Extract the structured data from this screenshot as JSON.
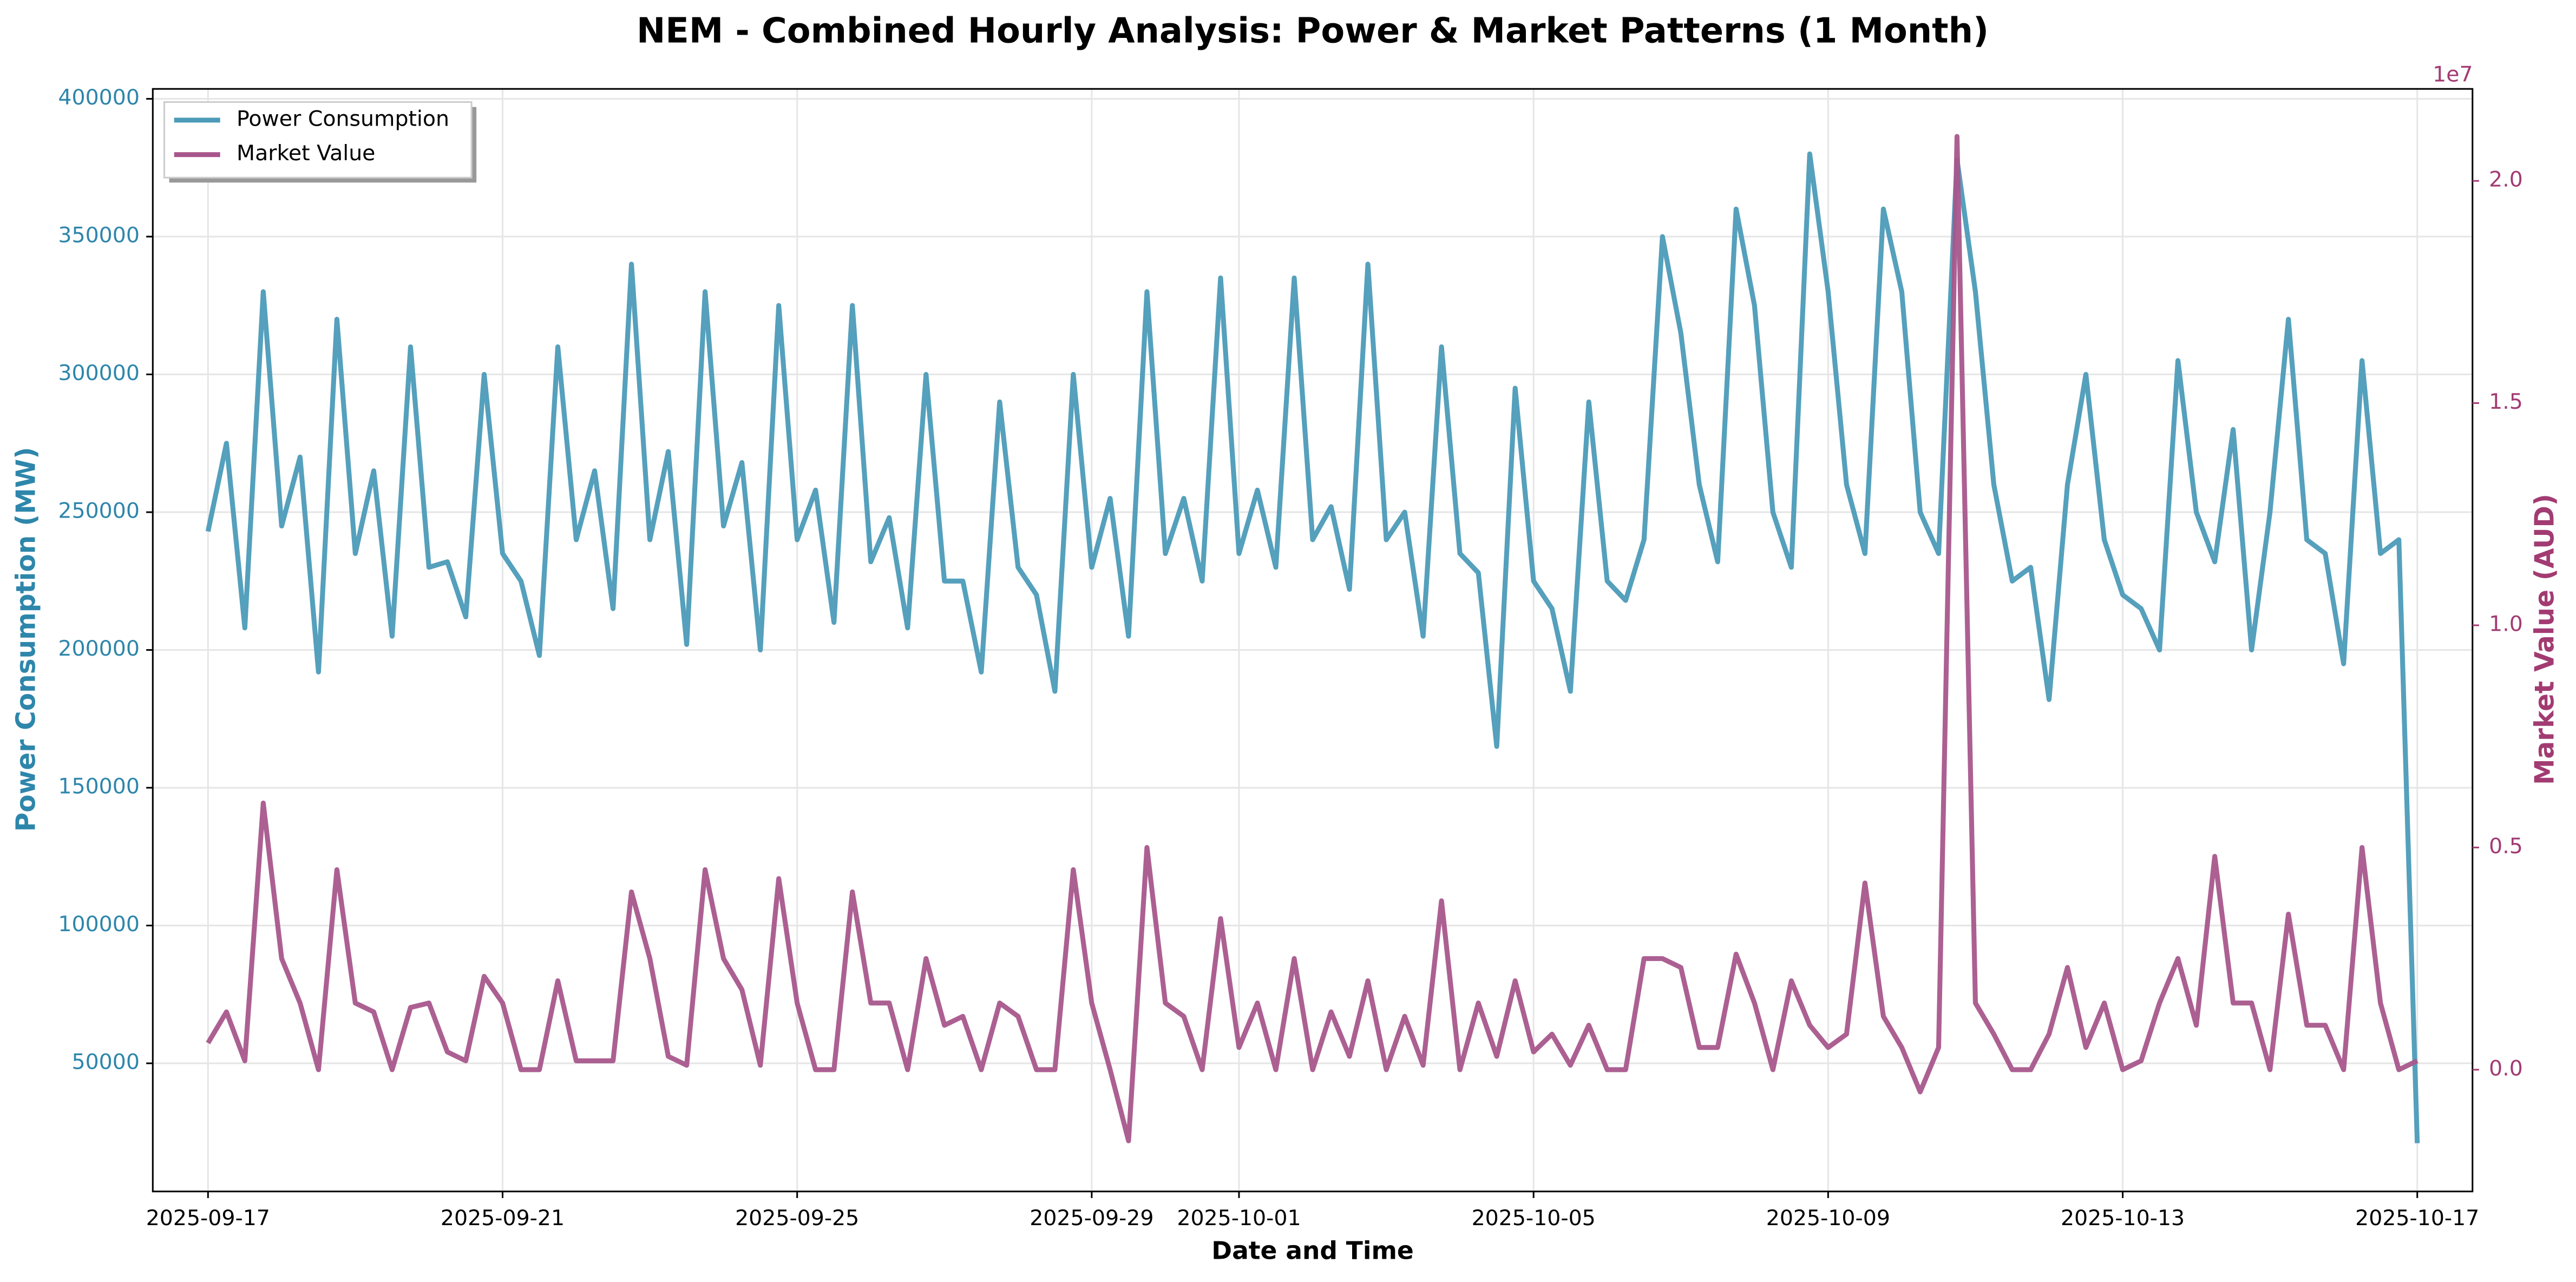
{
  "chart_data": {
    "type": "line",
    "title": "NEM - Combined Hourly Analysis: Power & Market Patterns (1 Month)",
    "xlabel": "Date and Time",
    "ylabel": "Power Consumption (MW)",
    "y2label": "Market Value (AUD)",
    "y2_offset_label": "1e7",
    "grid": true,
    "legend": "upper left",
    "x": [
      0,
      0.25,
      0.5,
      0.75,
      1,
      1.25,
      1.5,
      1.75,
      2,
      2.25,
      2.5,
      2.75,
      3,
      3.25,
      3.5,
      3.75,
      4,
      4.25,
      4.5,
      4.75,
      5,
      5.25,
      5.5,
      5.75,
      6,
      6.25,
      6.5,
      6.75,
      7,
      7.25,
      7.5,
      7.75,
      8,
      8.25,
      8.5,
      8.75,
      9,
      9.25,
      9.5,
      9.75,
      10,
      10.25,
      10.5,
      10.75,
      11,
      11.25,
      11.5,
      11.75,
      12,
      12.25,
      12.5,
      12.75,
      13,
      13.25,
      13.5,
      13.75,
      14,
      14.25,
      14.5,
      14.75,
      15,
      15.25,
      15.5,
      15.75,
      16,
      16.25,
      16.5,
      16.75,
      17,
      17.25,
      17.5,
      17.75,
      18,
      18.25,
      18.5,
      18.75,
      19,
      19.25,
      19.5,
      19.75,
      20,
      20.25,
      20.5,
      20.75,
      21,
      21.25,
      21.5,
      21.75,
      22,
      22.25,
      22.5,
      22.75,
      23,
      23.25,
      23.5,
      23.75,
      24,
      24.25,
      24.5,
      24.75,
      25,
      25.25,
      25.5,
      25.75,
      26,
      26.25,
      26.5,
      26.75,
      27,
      27.25,
      27.5,
      27.75,
      28,
      28.25,
      28.5,
      28.75,
      29,
      29.25,
      29.5,
      29.75,
      30
    ],
    "xlim": [
      -0.75,
      30.75
    ],
    "xticks": [
      {
        "value": 0,
        "label": "2025-09-17"
      },
      {
        "value": 4,
        "label": "2025-09-21"
      },
      {
        "value": 8,
        "label": "2025-09-25"
      },
      {
        "value": 12,
        "label": "2025-09-29"
      },
      {
        "value": 14,
        "label": "2025-10-01"
      },
      {
        "value": 18,
        "label": "2025-10-05"
      },
      {
        "value": 22,
        "label": "2025-10-09"
      },
      {
        "value": 26,
        "label": "2025-10-13"
      },
      {
        "value": 30,
        "label": "2025-10-17"
      }
    ],
    "ylim": [
      3500,
      403600
    ],
    "yticks": [
      50000,
      100000,
      150000,
      200000,
      250000,
      300000,
      350000,
      400000
    ],
    "y2lim": [
      -2740000,
      22070000
    ],
    "y2ticks": [
      {
        "value": 0,
        "label": "0.0"
      },
      {
        "value": 5000000,
        "label": "0.5"
      },
      {
        "value": 10000000,
        "label": "1.0"
      },
      {
        "value": 15000000,
        "label": "1.5"
      },
      {
        "value": 20000000,
        "label": "2.0"
      }
    ],
    "series": [
      {
        "name": "Power Consumption",
        "color": "#4C9BB8",
        "axis": "y",
        "values": [
          243000,
          275000,
          208000,
          330000,
          245000,
          270000,
          192000,
          320000,
          235000,
          265000,
          205000,
          310000,
          230000,
          232000,
          212000,
          300000,
          235000,
          225000,
          198000,
          310000,
          240000,
          265000,
          215000,
          340000,
          240000,
          272000,
          202000,
          330000,
          245000,
          268000,
          200000,
          325000,
          240000,
          258000,
          210000,
          325000,
          232000,
          248000,
          208000,
          300000,
          225000,
          225000,
          192000,
          290000,
          230000,
          220000,
          185000,
          300000,
          230000,
          255000,
          205000,
          330000,
          235000,
          255000,
          225000,
          335000,
          235000,
          258000,
          230000,
          335000,
          240000,
          252000,
          222000,
          340000,
          240000,
          250000,
          205000,
          310000,
          235000,
          228000,
          165000,
          295000,
          225000,
          215000,
          185000,
          290000,
          225000,
          218000,
          240000,
          350000,
          315000,
          260000,
          232000,
          360000,
          325000,
          250000,
          230000,
          380000,
          330000,
          260000,
          235000,
          360000,
          330000,
          250000,
          235000,
          378000,
          330000,
          260000,
          225000,
          230000,
          182000,
          260000,
          300000,
          240000,
          220000,
          215000,
          200000,
          305000,
          250000,
          232000,
          280000,
          200000,
          250000,
          320000,
          240000,
          235000,
          195000,
          305000,
          235000,
          240000,
          21000
        ]
      },
      {
        "name": "Market Value",
        "color": "#A8578C",
        "axis": "y2",
        "values": [
          600000,
          1300000,
          200000,
          6000000,
          2500000,
          1500000,
          0,
          4500000,
          1500000,
          1300000,
          0,
          1400000,
          1500000,
          400000,
          200000,
          2100000,
          1500000,
          0,
          0,
          2000000,
          200000,
          200000,
          200000,
          4000000,
          2500000,
          300000,
          100000,
          4500000,
          2500000,
          1800000,
          100000,
          4300000,
          1500000,
          0,
          0,
          4000000,
          1500000,
          1500000,
          0,
          2500000,
          1000000,
          1200000,
          0,
          1500000,
          1200000,
          0,
          0,
          4500000,
          1500000,
          0,
          -1600000,
          5000000,
          1500000,
          1200000,
          0,
          3400000,
          500000,
          1500000,
          0,
          2500000,
          0,
          1300000,
          300000,
          2000000,
          0,
          1200000,
          100000,
          3800000,
          0,
          1500000,
          300000,
          2000000,
          400000,
          800000,
          100000,
          1000000,
          0,
          0,
          2500000,
          2500000,
          2300000,
          500000,
          500000,
          2600000,
          1500000,
          0,
          2000000,
          1000000,
          500000,
          800000,
          4200000,
          1200000,
          500000,
          -500000,
          500000,
          21000000,
          1500000,
          800000,
          0,
          0,
          800000,
          2300000,
          500000,
          1500000,
          0,
          200000,
          1500000,
          2500000,
          1000000,
          4800000,
          1500000,
          1500000,
          0,
          3500000,
          1000000,
          1000000,
          0,
          5000000,
          1500000,
          0,
          200000
        ]
      }
    ]
  }
}
